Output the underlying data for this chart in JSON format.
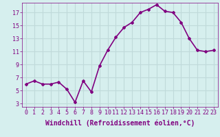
{
  "x": [
    0,
    1,
    2,
    3,
    4,
    5,
    6,
    7,
    8,
    9,
    10,
    11,
    12,
    13,
    14,
    15,
    16,
    17,
    18,
    19,
    20,
    21,
    22,
    23
  ],
  "y": [
    6,
    6.5,
    6,
    6,
    6.3,
    5.2,
    3.2,
    6.5,
    4.8,
    8.8,
    11.2,
    13.2,
    14.7,
    15.5,
    17.0,
    17.5,
    18.2,
    17.2,
    17.0,
    15.5,
    13.0,
    11.2,
    11.0,
    11.2
  ],
  "line_color": "#800080",
  "marker": "D",
  "marker_size": 2,
  "xlabel": "Windchill (Refroidissement éolien,°C)",
  "xlabel_fontsize": 7,
  "xtick_labels": [
    "0",
    "1",
    "2",
    "3",
    "4",
    "5",
    "6",
    "7",
    "8",
    "9",
    "10",
    "11",
    "12",
    "13",
    "14",
    "15",
    "16",
    "17",
    "18",
    "19",
    "20",
    "21",
    "22",
    "23"
  ],
  "yticks": [
    3,
    5,
    7,
    9,
    11,
    13,
    15,
    17
  ],
  "ylim": [
    2.5,
    18.5
  ],
  "xlim": [
    -0.5,
    23.5
  ],
  "background_color": "#d6efee",
  "grid_color": "#c0dada",
  "tick_color": "#800080",
  "tick_fontsize": 6,
  "line_width": 1.2
}
